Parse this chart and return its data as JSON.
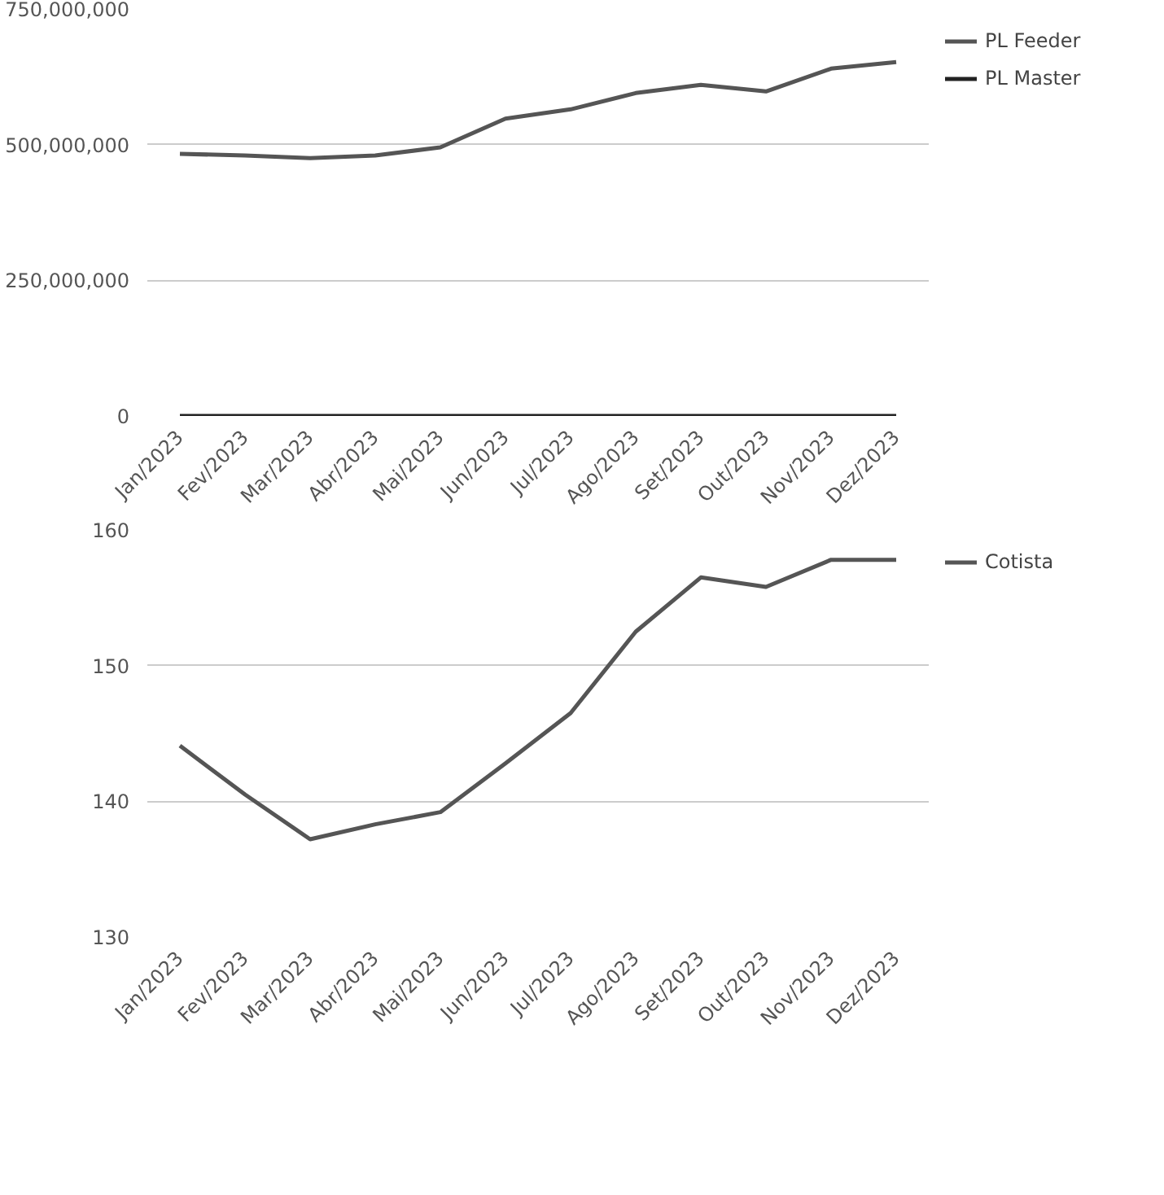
{
  "chart_data": [
    {
      "type": "line",
      "categories": [
        "Jan/2023",
        "Fev/2023",
        "Mar/2023",
        "Abr/2023",
        "Mai/2023",
        "Jun/2023",
        "Jul/2023",
        "Ago/2023",
        "Set/2023",
        "Out/2023",
        "Nov/2023",
        "Dez/2023"
      ],
      "series": [
        {
          "name": "PL Feeder",
          "color": "#555555",
          "values": [
            483000000,
            480000000,
            475000000,
            480000000,
            495000000,
            548000000,
            565000000,
            595000000,
            610000000,
            598000000,
            640000000,
            652000000
          ]
        },
        {
          "name": "PL Master",
          "color": "#222222",
          "values": [
            0,
            0,
            0,
            0,
            0,
            0,
            0,
            0,
            0,
            0,
            0,
            0
          ]
        }
      ],
      "ylim": [
        0,
        750000000
      ],
      "yticks": [
        {
          "value": 0,
          "label": "0"
        },
        {
          "value": 250000000,
          "label": "250,000,000"
        },
        {
          "value": 500000000,
          "label": "500,000,000"
        },
        {
          "value": 750000000,
          "label": "750,000,000"
        }
      ],
      "grid": "y",
      "legend": "top right",
      "marker": "none"
    },
    {
      "type": "line",
      "categories": [
        "Jan/2023",
        "Fev/2023",
        "Mar/2023",
        "Abr/2023",
        "Mai/2023",
        "Jun/2023",
        "Jul/2023",
        "Ago/2023",
        "Set/2023",
        "Out/2023",
        "Nov/2023",
        "Dez/2023"
      ],
      "series": [
        {
          "name": "Cotista",
          "color": "#555555",
          "values": [
            144.1,
            140.5,
            137.2,
            138.3,
            139.2,
            142.8,
            146.5,
            152.5,
            156.5,
            155.8,
            157.8,
            157.8
          ]
        }
      ],
      "ylim": [
        130,
        160
      ],
      "yticks": [
        130,
        140,
        150,
        160
      ],
      "grid": "y",
      "legend": "top right",
      "marker": "none"
    }
  ]
}
